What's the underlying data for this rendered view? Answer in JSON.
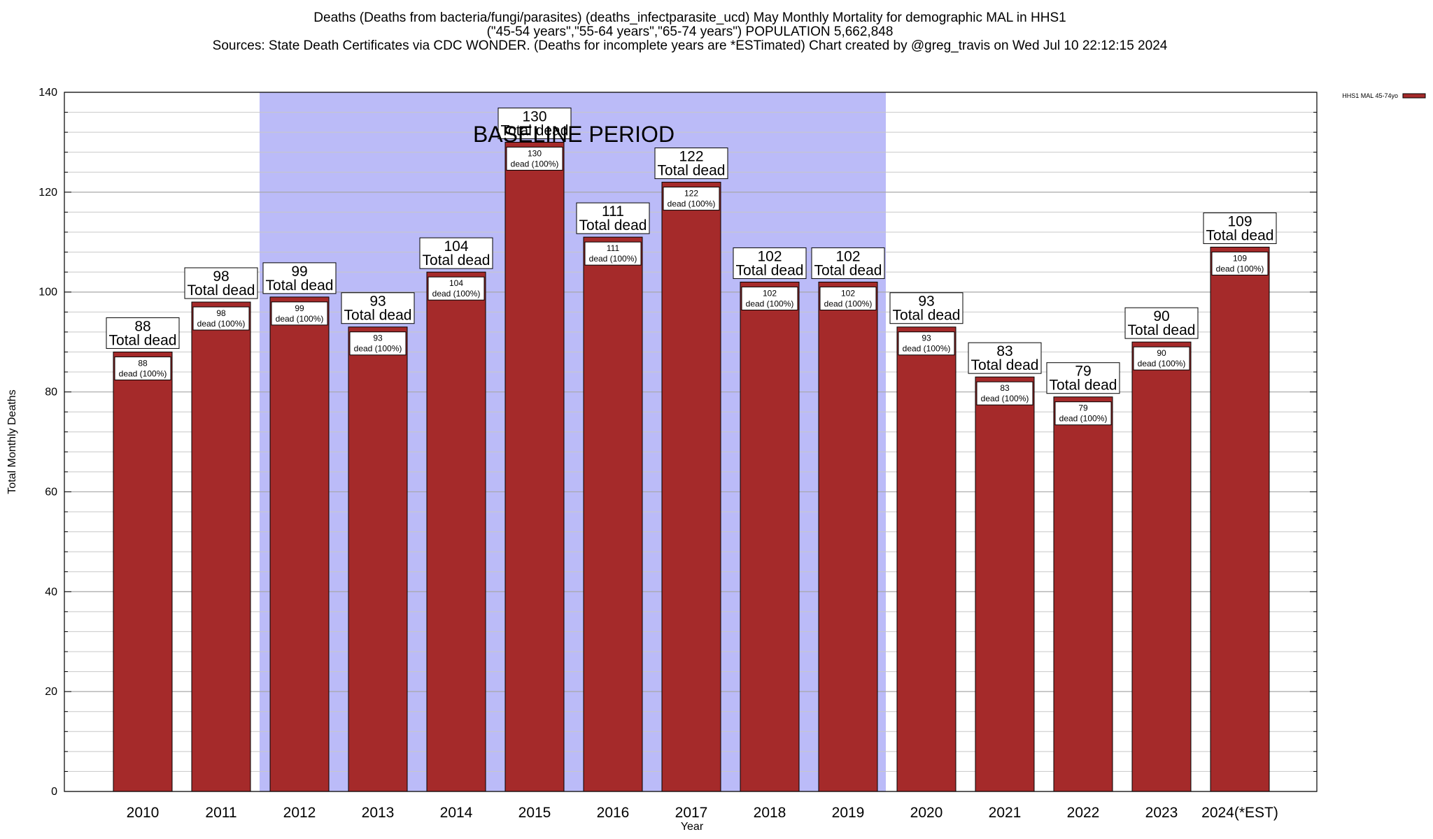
{
  "chart_data": {
    "type": "bar",
    "title_lines": [
      "Deaths (Deaths from bacteria/fungi/parasites) (deaths_infectparasite_ucd) May Monthly Mortality for demographic MAL in HHS1",
      "(\"45-54 years\",\"55-64 years\",\"65-74 years\") POPULATION 5,662,848",
      "Sources: State Death Certificates via CDC WONDER. (Deaths for incomplete years are *ESTimated)                 Chart created by @greg_travis on Wed Jul 10 22:12:15 2024"
    ],
    "xlabel": "Year",
    "ylabel": "Total Monthly Deaths",
    "ylim": [
      0,
      140
    ],
    "yticks": [
      0,
      20,
      40,
      60,
      80,
      100,
      120,
      140
    ],
    "categories": [
      "2010",
      "2011",
      "2012",
      "2013",
      "2014",
      "2015",
      "2016",
      "2017",
      "2018",
      "2019",
      "2020",
      "2021",
      "2022",
      "2023",
      "2024(*EST)"
    ],
    "series": [
      {
        "name": "HHS1 MAL 45-74yo",
        "color": "#a52a2a",
        "values": [
          88,
          98,
          99,
          93,
          104,
          130,
          111,
          122,
          102,
          102,
          93,
          83,
          79,
          90,
          109
        ]
      }
    ],
    "bar_label_line2": "Total dead",
    "inner_label_line2": "dead (100%)",
    "baseline_period": {
      "label": "BASELINE PERIOD",
      "from_category": "2012",
      "to_category": "2019",
      "color": "#bbbbf8"
    },
    "grid": true,
    "legend_position": "top-right"
  }
}
